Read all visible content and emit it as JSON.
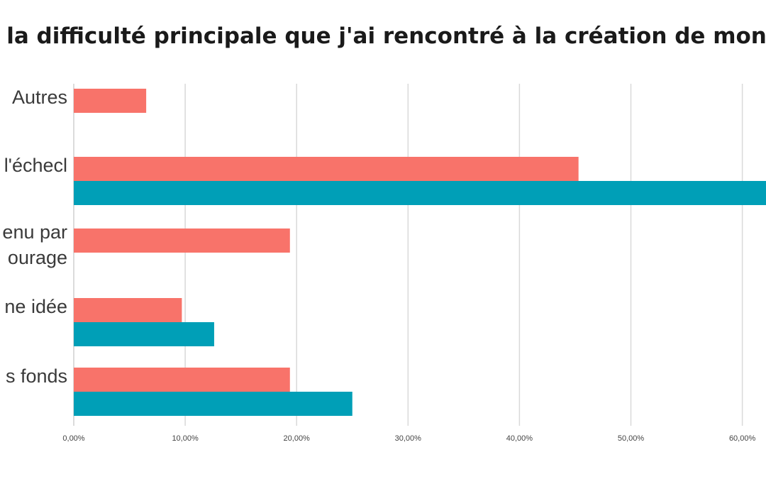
{
  "chart_data": {
    "type": "bar",
    "orientation": "horizontal",
    "title": ": la difficulté principale que j'ai rencontré à la création de mon e",
    "categories": [
      [
        "Autres"
      ],
      [
        "l'échecl"
      ],
      [
        "enu par",
        "ourage"
      ],
      [
        "ne idée"
      ],
      [
        "s fonds"
      ]
    ],
    "series": [
      {
        "color": "#F8736A",
        "values": [
          6.5,
          45.3,
          19.4,
          9.7,
          19.4
        ]
      },
      {
        "color": "#009FB7",
        "values": [
          null,
          62.5,
          null,
          12.6,
          25.0
        ]
      }
    ],
    "xticks": [
      "0,00%",
      "10,00%",
      "20,00%",
      "30,00%",
      "40,00%",
      "50,00%",
      "60,00%"
    ],
    "xlim": [
      0,
      62.5
    ],
    "grid": true,
    "gridColor": "#d9d9d9"
  }
}
